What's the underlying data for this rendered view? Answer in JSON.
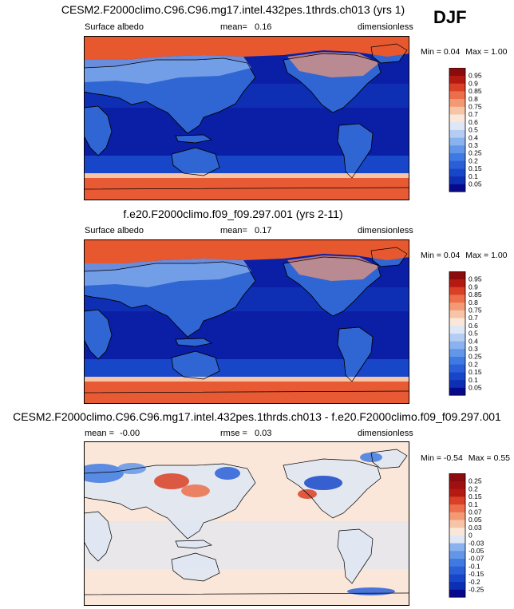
{
  "season": "DJF",
  "chart_data": [
    {
      "type": "heatmap",
      "title": "CESM2.F2000climo.C96.C96.mg17.intel.432pes.1thrds.ch013 (yrs 1)",
      "variable": "Surface albedo",
      "stat_label": "mean=",
      "stat_value": "0.16",
      "units": "dimensionless",
      "min_label": "Min =",
      "min_value": "0.04",
      "max_label": "Max =",
      "max_value": "1.00",
      "colorbar_levels": [
        "0.05",
        "0.1",
        "0.15",
        "0.2",
        "0.25",
        "0.3",
        "0.4",
        "0.5",
        "0.6",
        "0.7",
        "0.75",
        "0.8",
        "0.85",
        "0.9",
        "0.95"
      ],
      "colorbar_colors": [
        "#08088c",
        "#0d2fb4",
        "#1846c9",
        "#2a5fd8",
        "#3f7ae2",
        "#6396e8",
        "#8ab2ee",
        "#b5cdf2",
        "#dde7f5",
        "#fae7d9",
        "#f6c4a6",
        "#f39a75",
        "#ec6e4a",
        "#d94025",
        "#b51a12",
        "#8a0c0c"
      ],
      "description_features": [
        "ocean",
        "land",
        "sea-ice",
        "snow"
      ]
    },
    {
      "type": "heatmap",
      "title": "f.e20.F2000climo.f09_f09.297.001 (yrs 2-11)",
      "variable": "Surface albedo",
      "stat_label": "mean=",
      "stat_value": "0.17",
      "units": "dimensionless",
      "min_label": "Min =",
      "min_value": "0.04",
      "max_label": "Max =",
      "max_value": "1.00",
      "colorbar_levels": [
        "0.05",
        "0.1",
        "0.15",
        "0.2",
        "0.25",
        "0.3",
        "0.4",
        "0.5",
        "0.6",
        "0.7",
        "0.75",
        "0.8",
        "0.85",
        "0.9",
        "0.95"
      ],
      "colorbar_colors": [
        "#08088c",
        "#0d2fb4",
        "#1846c9",
        "#2a5fd8",
        "#3f7ae2",
        "#6396e8",
        "#8ab2ee",
        "#b5cdf2",
        "#dde7f5",
        "#fae7d9",
        "#f6c4a6",
        "#f39a75",
        "#ec6e4a",
        "#d94025",
        "#b51a12",
        "#8a0c0c"
      ]
    },
    {
      "type": "heatmap",
      "title": "CESM2.F2000climo.C96.C96.mg17.intel.432pes.1thrds.ch013 - f.e20.F2000climo.f09_f09.297.001",
      "mean_label": "mean =",
      "mean_value": "-0.00",
      "rmse_label": "rmse =",
      "rmse_value": "0.03",
      "units": "dimensionless",
      "min_label": "Min =",
      "min_value": "-0.54",
      "max_label": "Max =",
      "max_value": "0.55",
      "colorbar_levels": [
        "-0.25",
        "-0.2",
        "-0.15",
        "-0.1",
        "-0.07",
        "-0.05",
        "-0.03",
        "0",
        "0.03",
        "0.05",
        "0.07",
        "0.1",
        "0.15",
        "0.2",
        "0.25"
      ],
      "colorbar_colors": [
        "#08088c",
        "#0d2fb4",
        "#1846c9",
        "#2a5fd8",
        "#3f7ae2",
        "#6396e8",
        "#8ab2ee",
        "#dde7f5",
        "#fae7d9",
        "#f6c4a6",
        "#f39a75",
        "#ec6e4a",
        "#d94025",
        "#b51a12",
        "#a01010",
        "#8a0c0c"
      ]
    }
  ]
}
